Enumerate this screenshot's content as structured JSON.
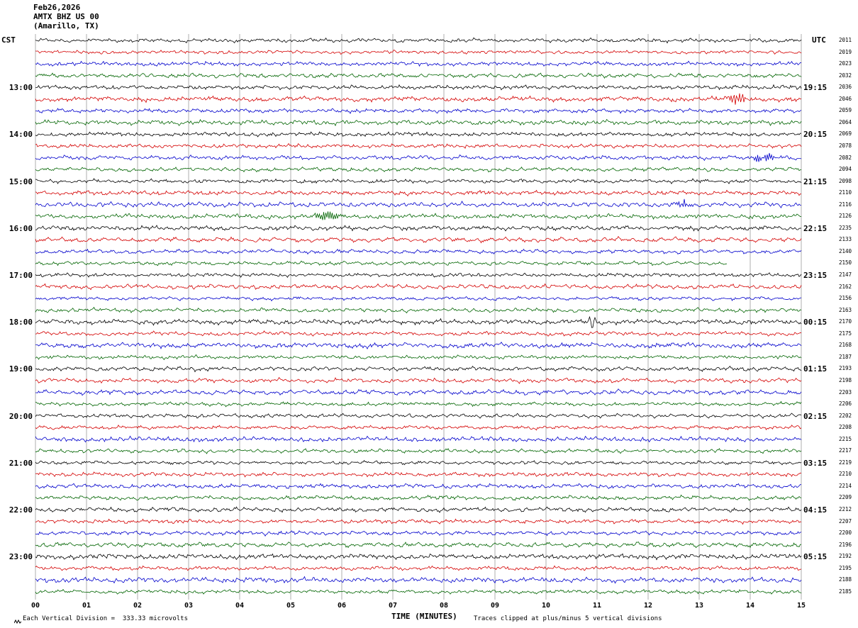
{
  "header": {
    "date": "Feb26,2026",
    "station": "AMTX BHZ US 00",
    "location": "(Amarillo, TX)"
  },
  "axes": {
    "left_tz": "CST",
    "right_tz": "UTC",
    "x_title": "TIME (MINUTES)",
    "x_ticks": [
      "00",
      "01",
      "02",
      "03",
      "04",
      "05",
      "06",
      "07",
      "08",
      "09",
      "10",
      "11",
      "12",
      "13",
      "14",
      "15"
    ]
  },
  "left_hour_labels": [
    {
      "row": 4,
      "label": "13:00"
    },
    {
      "row": 8,
      "label": "14:00"
    },
    {
      "row": 12,
      "label": "15:00"
    },
    {
      "row": 16,
      "label": "16:00"
    },
    {
      "row": 20,
      "label": "17:00"
    },
    {
      "row": 24,
      "label": "18:00"
    },
    {
      "row": 28,
      "label": "19:00"
    },
    {
      "row": 32,
      "label": "20:00"
    },
    {
      "row": 36,
      "label": "21:00"
    },
    {
      "row": 40,
      "label": "22:00"
    },
    {
      "row": 44,
      "label": "23:00"
    }
  ],
  "right_hour_labels": [
    {
      "row": 4,
      "label": "19:15"
    },
    {
      "row": 8,
      "label": "20:15"
    },
    {
      "row": 12,
      "label": "21:15"
    },
    {
      "row": 16,
      "label": "22:15"
    },
    {
      "row": 20,
      "label": "23:15"
    },
    {
      "row": 24,
      "label": "00:15"
    },
    {
      "row": 28,
      "label": "01:15"
    },
    {
      "row": 32,
      "label": "02:15"
    },
    {
      "row": 36,
      "label": "03:15"
    },
    {
      "row": 40,
      "label": "04:15"
    },
    {
      "row": 44,
      "label": "05:15"
    }
  ],
  "trace_ids": [
    "2011",
    "2019",
    "2023",
    "2032",
    "2036",
    "2046",
    "2059",
    "2064",
    "2069",
    "2078",
    "2082",
    "2094",
    "2098",
    "2110",
    "2116",
    "2126",
    "2235",
    "2133",
    "2140",
    "2150",
    "2147",
    "2162",
    "2156",
    "2163",
    "2170",
    "2175",
    "2168",
    "2187",
    "2193",
    "2198",
    "2203",
    "2206",
    "2202",
    "2208",
    "2215",
    "2217",
    "2219",
    "2210",
    "2214",
    "2209",
    "2212",
    "2207",
    "2200",
    "2196",
    "2192",
    "2195",
    "2188",
    "2185"
  ],
  "footer": {
    "scale_note": "Each Vertical Division =  333.33 microvolts",
    "clip_note": "Traces clipped at plus/minus 5 vertical divisions"
  },
  "chart_data": {
    "type": "line",
    "title": "Helicorder record AMTX BHZ US 00 (Amarillo, TX) Feb26,2026",
    "xlabel": "TIME (MINUTES)",
    "x_range": [
      0,
      15
    ],
    "rows": 48,
    "minutes_per_row": 15,
    "first_row_start_cst": "12:00",
    "last_row_start_cst": "23:45",
    "utc_offset_hours": 6,
    "row_color_cycle": [
      "#000000",
      "#d40000",
      "#0000cc",
      "#006400"
    ],
    "grid_color": "#7a7a7a",
    "background_noise_amplitude_divisions": 0.18,
    "clip_divisions": 5,
    "events": [
      {
        "row": 5,
        "trace_color": "#d40000",
        "minute": 13.75,
        "amplitude_divisions": 0.45,
        "sigma_minutes": 0.12,
        "freq_cpm": 30
      },
      {
        "row": 10,
        "trace_color": "#0000cc",
        "minute": 14.25,
        "amplitude_divisions": 0.35,
        "sigma_minutes": 0.15,
        "freq_cpm": 26
      },
      {
        "row": 14,
        "trace_color": "#0000cc",
        "minute": 12.7,
        "amplitude_divisions": 0.26,
        "sigma_minutes": 0.12,
        "freq_cpm": 28
      },
      {
        "row": 15,
        "trace_color": "#006400",
        "minute": 5.72,
        "amplitude_divisions": 0.3,
        "sigma_minutes": 0.16,
        "freq_cpm": 24
      },
      {
        "row": 24,
        "trace_color": "#000000",
        "minute": 10.9,
        "amplitude_divisions": 0.55,
        "sigma_minutes": 0.05,
        "freq_cpm": 40
      }
    ],
    "truncated_rows": [
      {
        "row": 19,
        "end_minute": 13.55
      }
    ]
  }
}
